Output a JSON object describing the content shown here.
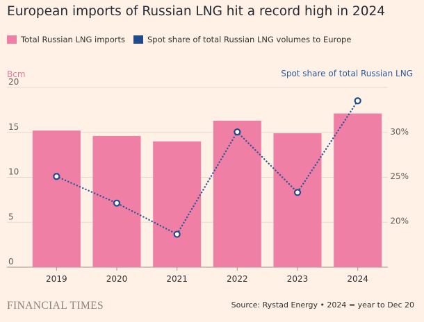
{
  "title": "European imports of Russian LNG hit a record high in 2024",
  "legend": {
    "bars_label": "Total Russian LNG imports",
    "line_label": "Spot share of total Russian LNG volumes to Europe"
  },
  "colors": {
    "bars": "#f07fa5",
    "line": "#2f5797",
    "background": "#fff1e5"
  },
  "footer": {
    "brand": "FINANCIAL TIMES",
    "source": "Source: Rystad Energy • 2024 = year to Dec 20"
  },
  "chart_data": {
    "type": "bar",
    "categories": [
      "2019",
      "2020",
      "2021",
      "2022",
      "2023",
      "2024"
    ],
    "ylabel": "Bcm",
    "ylim": [
      0,
      20
    ],
    "yticks": [
      "0",
      "5",
      "10",
      "15",
      "20"
    ],
    "y2label": "Spot share of total Russian LNG",
    "y2lim": [
      14.8,
      35
    ],
    "y2ticks": [
      "20%",
      "25%",
      "30%"
    ],
    "series": [
      {
        "name": "Total Russian LNG imports",
        "type": "bar",
        "axis": "left",
        "values": [
          15.2,
          14.6,
          14.0,
          16.3,
          14.9,
          17.1
        ]
      },
      {
        "name": "Spot share of total Russian LNG volumes to Europe",
        "type": "line",
        "axis": "right",
        "values": [
          25.0,
          22.0,
          18.5,
          30.0,
          23.2,
          33.5
        ]
      }
    ],
    "grid": true
  }
}
